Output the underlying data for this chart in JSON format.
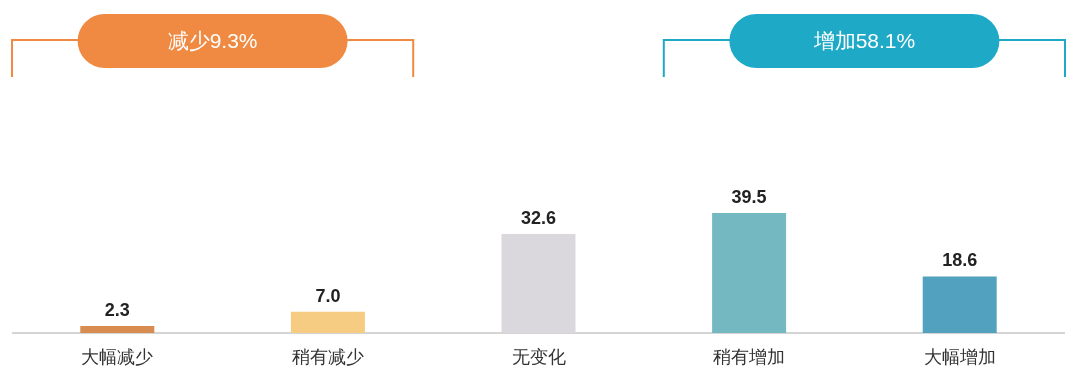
{
  "chart_data": {
    "type": "bar",
    "categories": [
      "大幅减少",
      "稍有减少",
      "无变化",
      "稍有增加",
      "大幅增加"
    ],
    "values": [
      2.3,
      7.0,
      32.6,
      39.5,
      18.6
    ],
    "colors": [
      "#d98c4f",
      "#f6cb82",
      "#dad8dc",
      "#74b9c2",
      "#52a2bf"
    ],
    "value_labels": [
      "2.3",
      "7.0",
      "32.6",
      "39.5",
      "18.6"
    ],
    "annotations": [
      "减少9.3%",
      "增加58.1%"
    ]
  }
}
